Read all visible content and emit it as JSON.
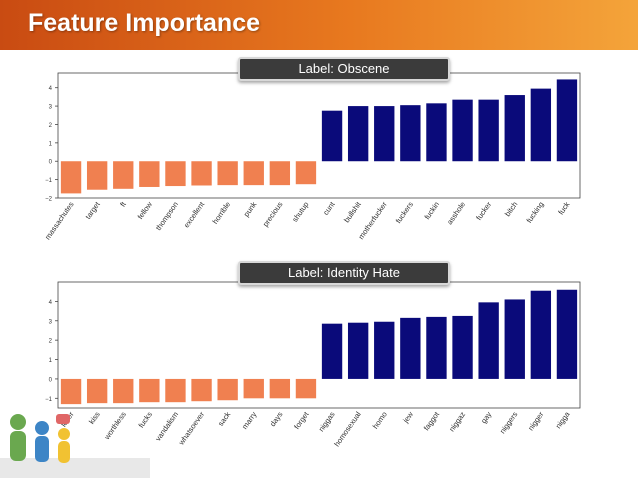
{
  "slide": {
    "title": "Feature Importance"
  },
  "colors": {
    "negative": "#f08050",
    "positive": "#0a0a7a",
    "header": "#d9621a"
  },
  "chart_data": [
    {
      "type": "bar",
      "label": "Label: Obscene",
      "categories": [
        "massachutes",
        "target",
        "ft",
        "fellow",
        "thompson",
        "excellent",
        "horrible",
        "punk",
        "precious",
        "shutup",
        "cunt",
        "bullshit",
        "motherfucker",
        "fuckers",
        "fuckin",
        "asshole",
        "fucker",
        "bitch",
        "fucking",
        "fuck"
      ],
      "values": [
        -1.75,
        -1.55,
        -1.5,
        -1.4,
        -1.35,
        -1.32,
        -1.3,
        -1.3,
        -1.3,
        -1.25,
        2.75,
        3.0,
        3.0,
        3.05,
        3.15,
        3.35,
        3.35,
        3.6,
        3.95,
        4.45
      ],
      "yticks": [
        -2,
        -1,
        0,
        1,
        2,
        3,
        4
      ],
      "ylim": [
        -2,
        4.8
      ]
    },
    {
      "type": "bar",
      "label": "Label: Identity Hate",
      "categories": [
        "lover",
        "kiss",
        "worthless",
        "fucks",
        "vandalism",
        "whatsoever",
        "sack",
        "marry",
        "days",
        "forget",
        "niggas",
        "homosexual",
        "homo",
        "jew",
        "faggot",
        "niggaz",
        "gay",
        "niggers",
        "nigger",
        "nigga"
      ],
      "values": [
        -1.3,
        -1.25,
        -1.25,
        -1.2,
        -1.2,
        -1.15,
        -1.1,
        -1.0,
        -1.0,
        -1.0,
        2.85,
        2.9,
        2.95,
        3.15,
        3.2,
        3.25,
        3.95,
        4.1,
        4.55,
        4.6
      ],
      "yticks": [
        -1,
        0,
        1,
        2,
        3,
        4
      ],
      "ylim": [
        -1.5,
        5.0
      ]
    }
  ]
}
